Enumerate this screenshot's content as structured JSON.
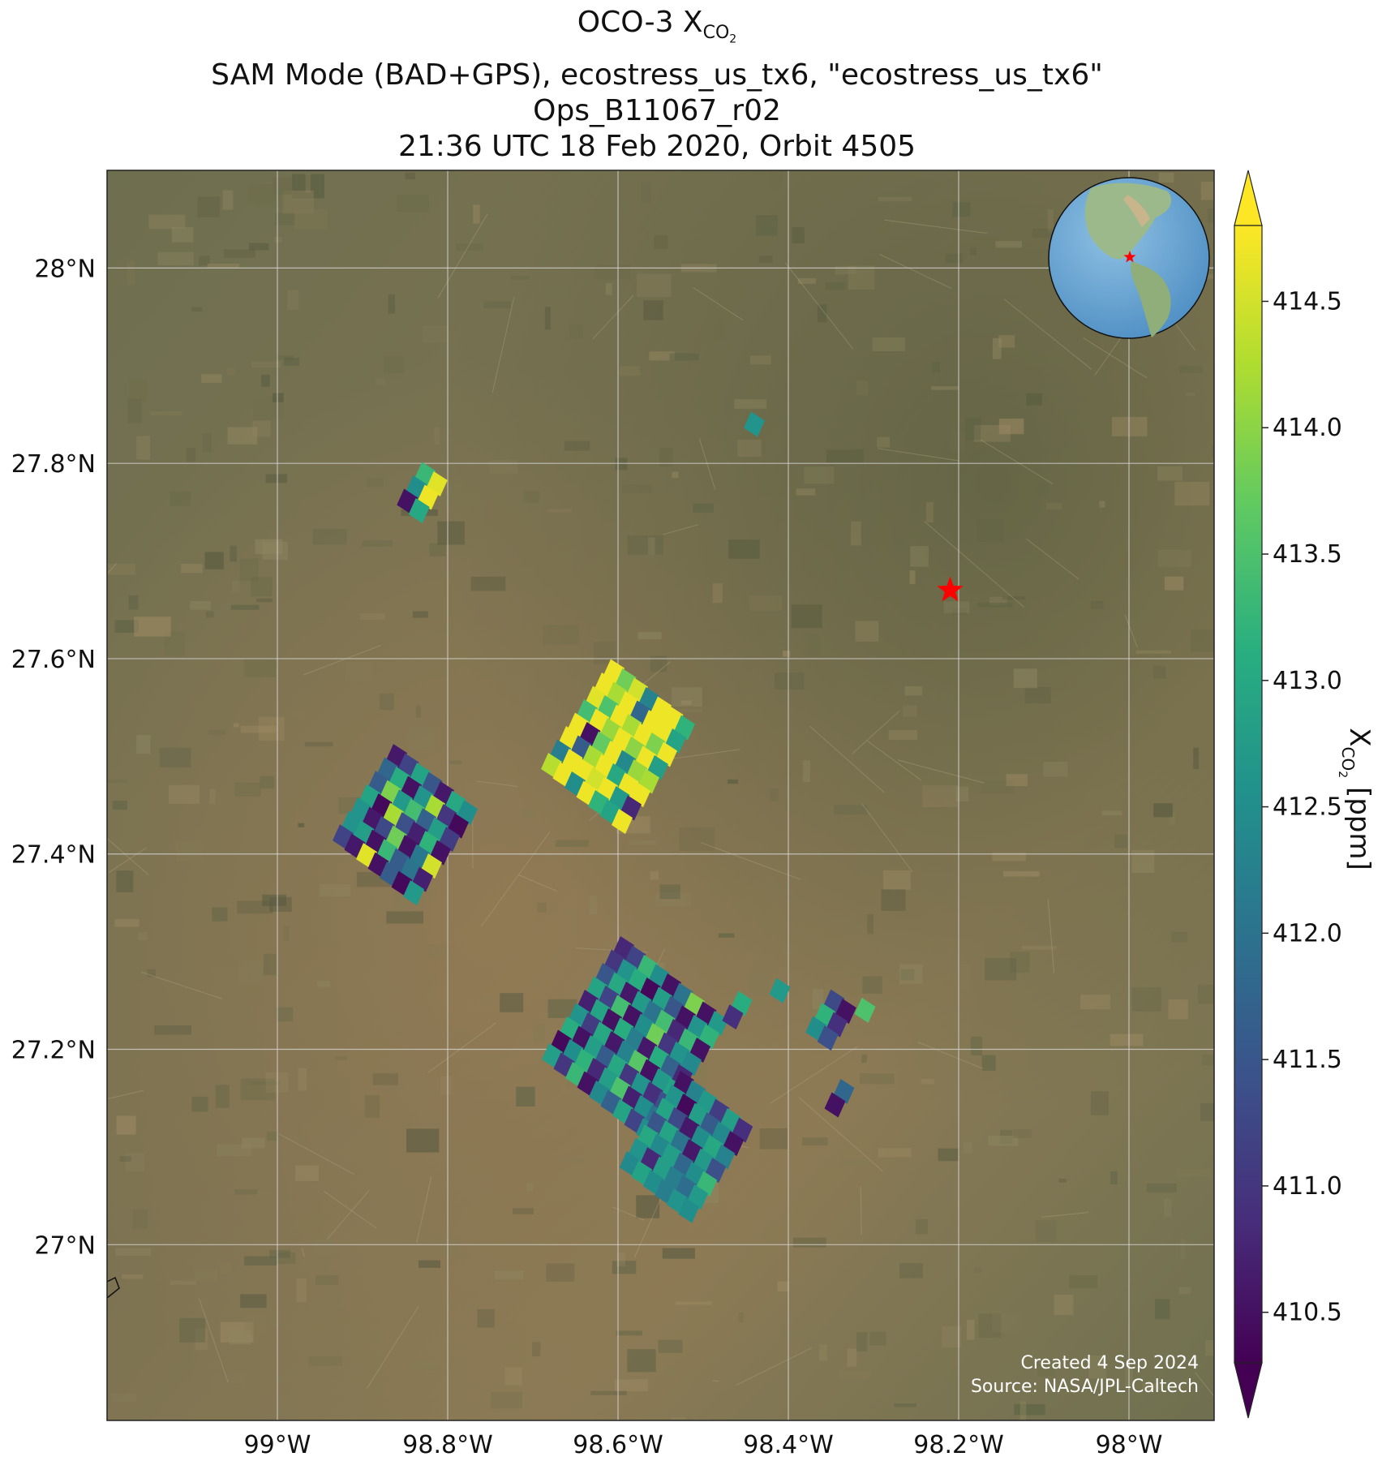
{
  "title": {
    "line1_main": "OCO-3 X",
    "line1_sub": "CO",
    "line1_sub2": "2",
    "line2": "SAM Mode (BAD+GPS), ecostress_us_tx6, \"ecostress_us_tx6\"",
    "line3": "Ops_B11067_r02",
    "line4": "21:36 UTC 18 Feb 2020, Orbit 4505"
  },
  "map": {
    "lon_range": [
      -99.2,
      -97.9
    ],
    "lat_range": [
      26.82,
      28.1
    ],
    "lon_ticks": [
      {
        "value": -99.0,
        "label": "99°W"
      },
      {
        "value": -98.8,
        "label": "98.8°W"
      },
      {
        "value": -98.6,
        "label": "98.6°W"
      },
      {
        "value": -98.4,
        "label": "98.4°W"
      },
      {
        "value": -98.2,
        "label": "98.2°W"
      },
      {
        "value": -98.0,
        "label": "98°W"
      }
    ],
    "lat_ticks": [
      {
        "value": 28.0,
        "label": "28°N"
      },
      {
        "value": 27.8,
        "label": "27.8°N"
      },
      {
        "value": 27.6,
        "label": "27.6°N"
      },
      {
        "value": 27.4,
        "label": "27.4°N"
      },
      {
        "value": 27.2,
        "label": "27.2°N"
      },
      {
        "value": 27.0,
        "label": "27°N"
      }
    ],
    "target_marker": {
      "lon": -98.21,
      "lat": 27.67,
      "color": "#ff0000",
      "shape": "star"
    },
    "background": "satellite imagery",
    "gridlines": true,
    "inset_globe": {
      "position": "top-right",
      "marker": "red star"
    }
  },
  "colorbar": {
    "min": 410.3,
    "max": 414.8,
    "colormap": "viridis",
    "extend": "both",
    "ticks": [
      "410.5",
      "411.0",
      "411.5",
      "412.0",
      "412.5",
      "413.0",
      "413.5",
      "414.0",
      "414.5"
    ],
    "label_main": "X",
    "label_sub": "CO",
    "label_sub2": "2",
    "label_unit": " [ppm]"
  },
  "credits": {
    "created": "Created 4 Sep 2024",
    "source": "Source: NASA/JPL-Caltech"
  },
  "chart_data": {
    "type": "map",
    "variable": "XCO2 soundings",
    "units": "ppm",
    "clusters": [
      {
        "lon": -98.44,
        "lat": 27.84,
        "n": 1,
        "values": [
          412.6
        ]
      },
      {
        "lon": -98.83,
        "lat": 27.77,
        "rows": 3,
        "cols": 2,
        "values": [
          413.3,
          414.6,
          412.5,
          414.7,
          410.5,
          413.0
        ]
      },
      {
        "lon": -98.6,
        "lat": 27.51,
        "rows": 8,
        "cols": 7,
        "values": [
          414.7,
          413.8,
          414.5,
          412.3,
          414.7,
          414.7,
          413.2,
          414.7,
          414.2,
          414.7,
          411.8,
          414.7,
          414.7,
          412.9,
          414.6,
          413.5,
          414.7,
          414.2,
          414.7,
          413.9,
          414.7,
          413.4,
          414.7,
          414.1,
          414.7,
          414.0,
          414.7,
          412.8,
          414.7,
          410.5,
          413.7,
          414.7,
          412.4,
          414.1,
          414.2,
          414.7,
          411.6,
          414.2,
          414.7,
          413.0,
          414.7,
          414.7,
          412.2,
          414.7,
          414.7,
          414.5,
          414.7,
          412.7,
          410.8,
          414.3,
          414.7,
          412.5,
          414.7,
          413.2,
          412.9,
          414.7
        ]
      },
      {
        "lon": -98.85,
        "lat": 27.43,
        "rows": 7,
        "cols": 7,
        "values": [
          410.6,
          411.2,
          412.9,
          411.5,
          410.6,
          413.0,
          412.5,
          411.8,
          413.1,
          410.5,
          412.6,
          414.2,
          411.0,
          410.4,
          411.6,
          413.9,
          412.7,
          413.4,
          411.7,
          412.8,
          411.1,
          412.9,
          410.4,
          414.2,
          411.4,
          410.7,
          413.2,
          410.5,
          412.6,
          410.6,
          411.3,
          413.8,
          410.5,
          412.1,
          414.5,
          412.6,
          412.8,
          410.5,
          413.3,
          411.6,
          412.0,
          410.7,
          411.2,
          410.6,
          414.6,
          410.5,
          411.6,
          410.4,
          412.7
        ]
      },
      {
        "lon": -98.58,
        "lat": 27.21,
        "rows": 9,
        "cols": 9,
        "values": [
          410.8,
          411.2,
          413.3,
          412.5,
          410.5,
          412.0,
          413.9,
          410.5,
          412.7,
          411.0,
          412.6,
          413.1,
          410.4,
          412.8,
          411.5,
          410.5,
          412.6,
          413.2,
          411.5,
          413.0,
          410.6,
          412.7,
          412.0,
          413.4,
          410.8,
          413.3,
          410.5,
          412.9,
          411.2,
          413.4,
          410.5,
          412.5,
          413.8,
          411.0,
          412.6,
          412.4,
          410.7,
          412.9,
          410.5,
          413.1,
          412.2,
          410.6,
          413.1,
          411.7,
          410.8,
          412.6,
          411.1,
          413.0,
          410.6,
          412.3,
          413.6,
          410.5,
          412.7,
          412.9,
          413.1,
          410.5,
          412.8,
          411.6,
          413.0,
          411.0,
          412.6,
          410.9,
          411.4,
          410.4,
          412.5,
          413.2,
          410.8,
          412.8,
          413.5,
          410.7,
          412.5,
          412.0,
          412.8,
          411.0,
          413.3,
          410.5,
          412.4,
          411.7,
          412.9,
          411.2,
          412.5
        ]
      },
      {
        "lon": -98.52,
        "lat": 27.1,
        "rows": 7,
        "cols": 6,
        "values": [
          410.5,
          412.3,
          412.7,
          411.1,
          412.8,
          410.9,
          412.6,
          410.4,
          412.8,
          411.6,
          412.4,
          410.5,
          412.9,
          411.3,
          410.6,
          412.5,
          413.0,
          412.3,
          411.5,
          412.9,
          412.0,
          410.6,
          412.7,
          411.4,
          413.0,
          412.4,
          412.8,
          411.8,
          412.5,
          413.3,
          412.6,
          410.8,
          412.8,
          412.2,
          411.9,
          412.7,
          412.4,
          412.9,
          412.5,
          412.2,
          412.6,
          412.5
        ]
      },
      {
        "lon": -98.46,
        "lat": 27.24,
        "rows": 2,
        "cols": 1,
        "values": [
          413.1,
          410.9
        ]
      },
      {
        "lon": -98.41,
        "lat": 27.26,
        "n": 1,
        "values": [
          412.7
        ]
      },
      {
        "lon": -98.35,
        "lat": 27.23,
        "rows": 3,
        "cols": 2,
        "values": [
          411.3,
          410.5,
          413.2,
          410.9,
          412.5,
          411.4
        ]
      },
      {
        "lon": -98.31,
        "lat": 27.24,
        "n": 1,
        "values": [
          413.5
        ]
      },
      {
        "lon": -98.34,
        "lat": 27.15,
        "rows": 2,
        "cols": 1,
        "values": [
          411.8,
          410.5
        ]
      }
    ]
  }
}
